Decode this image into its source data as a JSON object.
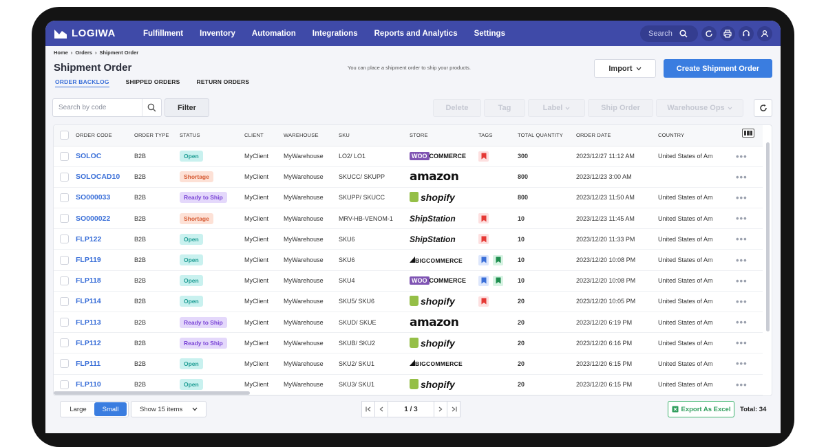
{
  "app": {
    "name": "LOGIWA"
  },
  "nav": {
    "items": [
      "Fulfillment",
      "Inventory",
      "Automation",
      "Integrations",
      "Reports and Analytics",
      "Settings"
    ],
    "search_placeholder": "Search"
  },
  "breadcrumb": [
    "Home",
    "›",
    "Orders",
    "›",
    "Shipment Order"
  ],
  "page": {
    "title": "Shipment Order",
    "hint": "You can place a shipment order to ship your products.",
    "import_label": "Import",
    "create_label": "Create Shipment Order"
  },
  "tabs": [
    "ORDER BACKLOG",
    "SHIPPED ORDERS",
    "RETURN ORDERS"
  ],
  "toolbar": {
    "search_placeholder": "Search by code",
    "filter_label": "Filter",
    "delete_label": "Delete",
    "tag_label": "Tag",
    "label_label": "Label",
    "ship_order_label": "Ship Order",
    "warehouse_ops_label": "Warehouse Ops"
  },
  "table": {
    "columns": [
      "ORDER CODE",
      "ORDER TYPE",
      "STATUS",
      "CLIENT",
      "WAREHOUSE",
      "SKU",
      "STORE",
      "TAGS",
      "TOTAL QUANTITY",
      "ORDER DATE",
      "COUNTRY"
    ],
    "rows": [
      {
        "code": "SOLOC",
        "type": "B2B",
        "status": "Open",
        "client": "MyClient",
        "warehouse": "MyWarehouse",
        "sku": "LO2/ LO1",
        "store": "WOOCOMMERCE",
        "tags": [
          "red"
        ],
        "qty": "300",
        "date": "2023/12/27 11:12 AM",
        "country": "United States of Am"
      },
      {
        "code": "SOLOCAD10",
        "type": "B2B",
        "status": "Shortage",
        "client": "MyClient",
        "warehouse": "MyWarehouse",
        "sku": "SKUCC/ SKUPP",
        "store": "amazon",
        "tags": [],
        "qty": "800",
        "date": "2023/12/23 3:00 AM",
        "country": ""
      },
      {
        "code": "SO000033",
        "type": "B2B",
        "status": "Ready to Ship",
        "client": "MyClient",
        "warehouse": "MyWarehouse",
        "sku": "SKUPP/ SKUCC",
        "store": "shopify",
        "tags": [],
        "qty": "800",
        "date": "2023/12/23 11:50 AM",
        "country": "United States of Am"
      },
      {
        "code": "SO000022",
        "type": "B2B",
        "status": "Shortage",
        "client": "MyClient",
        "warehouse": "MyWarehouse",
        "sku": "MRV-HB-VENOM-1",
        "store": "ShipStation",
        "tags": [
          "red"
        ],
        "qty": "10",
        "date": "2023/12/23 11:45 AM",
        "country": "United States of Am"
      },
      {
        "code": "FLP122",
        "type": "B2B",
        "status": "Open",
        "client": "MyClient",
        "warehouse": "MyWarehouse",
        "sku": "SKU6",
        "store": "ShipStation",
        "tags": [
          "red"
        ],
        "qty": "10",
        "date": "2023/12/20 11:33 PM",
        "country": "United States of Am"
      },
      {
        "code": "FLP119",
        "type": "B2B",
        "status": "Open",
        "client": "MyClient",
        "warehouse": "MyWarehouse",
        "sku": "SKU6",
        "store": "BIGCOMMERCE",
        "tags": [
          "blue",
          "green"
        ],
        "qty": "10",
        "date": "2023/12/20 10:08 PM",
        "country": "United States of Am"
      },
      {
        "code": "FLP118",
        "type": "B2B",
        "status": "Open",
        "client": "MyClient",
        "warehouse": "MyWarehouse",
        "sku": "SKU4",
        "store": "WOOCOMMERCE",
        "tags": [
          "blue",
          "green"
        ],
        "qty": "10",
        "date": "2023/12/20 10:08 PM",
        "country": "United States of Am"
      },
      {
        "code": "FLP114",
        "type": "B2B",
        "status": "Open",
        "client": "MyClient",
        "warehouse": "MyWarehouse",
        "sku": "SKU5/ SKU6",
        "store": "shopify",
        "tags": [
          "red"
        ],
        "qty": "20",
        "date": "2023/12/20 10:05 PM",
        "country": "United States of Am"
      },
      {
        "code": "FLP113",
        "type": "B2B",
        "status": "Ready to Ship",
        "client": "MyClient",
        "warehouse": "MyWarehouse",
        "sku": "SKUD/ SKUE",
        "store": "amazon",
        "tags": [],
        "qty": "20",
        "date": "2023/12/20 6:19 PM",
        "country": "United States of Am"
      },
      {
        "code": "FLP112",
        "type": "B2B",
        "status": "Ready to Ship",
        "client": "MyClient",
        "warehouse": "MyWarehouse",
        "sku": "SKUB/ SKU2",
        "store": "shopify",
        "tags": [],
        "qty": "20",
        "date": "2023/12/20 6:16 PM",
        "country": "United States of Am"
      },
      {
        "code": "FLP111",
        "type": "B2B",
        "status": "Open",
        "client": "MyClient",
        "warehouse": "MyWarehouse",
        "sku": "SKU2/ SKU1",
        "store": "BIGCOMMERCE",
        "tags": [],
        "qty": "20",
        "date": "2023/12/20 6:15 PM",
        "country": "United States of Am"
      },
      {
        "code": "FLP110",
        "type": "B2B",
        "status": "Open",
        "client": "MyClient",
        "warehouse": "MyWarehouse",
        "sku": "SKU3/ SKU1",
        "store": "shopify",
        "tags": [],
        "qty": "20",
        "date": "2023/12/20 6:15 PM",
        "country": "United States of Am"
      }
    ]
  },
  "footer": {
    "size_large": "Large",
    "size_small": "Small",
    "show_label": "Show 15 items",
    "page_indicator": "1 / 3",
    "export_label": "Export As Excel",
    "total_label": "Total: 34"
  },
  "colors": {
    "nav_bg": "#3f4aa8",
    "primary": "#3a7de0",
    "open": "#1f9d94",
    "shortage": "#d65b34",
    "ready": "#7a44d6"
  }
}
